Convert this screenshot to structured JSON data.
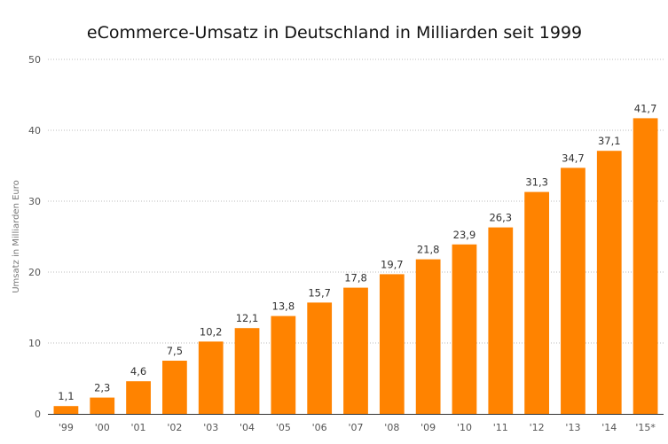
{
  "chart_data": {
    "type": "bar",
    "title": "eCommerce-Umsatz in Deutschland in Milliarden seit 1999",
    "xlabel": "",
    "ylabel": "Umsatz in Milliarden Euro",
    "ylim": [
      0,
      50
    ],
    "yticks": [
      "0",
      "10",
      "20",
      "30",
      "40",
      "50"
    ],
    "grid": true,
    "categories": [
      "'99",
      "'00",
      "'01",
      "'02",
      "'03",
      "'04",
      "'05",
      "'06",
      "'07",
      "'08",
      "'09",
      "'10",
      "'11",
      "'12",
      "'13",
      "'14",
      "'15*"
    ],
    "values": [
      1.1,
      2.3,
      4.6,
      7.5,
      10.2,
      12.1,
      13.8,
      15.7,
      17.8,
      19.7,
      21.8,
      23.9,
      26.3,
      31.3,
      34.7,
      37.1,
      41.7
    ],
    "value_labels": [
      "1,1",
      "2,3",
      "4,6",
      "7,5",
      "10,2",
      "12,1",
      "13,8",
      "15,7",
      "17,8",
      "19,7",
      "21,8",
      "23,9",
      "26,3",
      "31,3",
      "34,7",
      "37,1",
      "41,7"
    ],
    "colors": {
      "bar": "#ff8300",
      "axis": "#333333",
      "grid": "#bbbbbb"
    }
  }
}
